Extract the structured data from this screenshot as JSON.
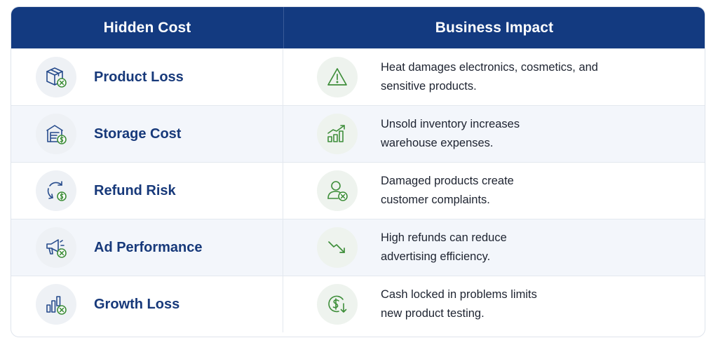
{
  "header": {
    "col1": "Hidden Cost",
    "col2": "Business Impact"
  },
  "colors": {
    "header_bg": "#133a80",
    "label_text": "#17397a",
    "icon_blue": "#264b8c",
    "icon_green": "#3e8e3a",
    "alt_row_bg": "#f3f6fb"
  },
  "rows": [
    {
      "cost_icon": "box-x-icon",
      "cost": "Product Loss",
      "impact_icon": "warning-triangle-icon",
      "impact_line1": "Heat damages electronics, cosmetics, and",
      "impact_line2": "sensitive products."
    },
    {
      "cost_icon": "warehouse-dollar-icon",
      "cost": "Storage Cost",
      "impact_icon": "bar-chart-up-icon",
      "impact_line1": "Unsold inventory increases",
      "impact_line2": "warehouse expenses."
    },
    {
      "cost_icon": "refund-cycle-dollar-icon",
      "cost": "Refund Risk",
      "impact_icon": "user-x-icon",
      "impact_line1": "Damaged products create",
      "impact_line2": "customer complaints."
    },
    {
      "cost_icon": "megaphone-x-icon",
      "cost": "Ad Performance",
      "impact_icon": "trend-down-icon",
      "impact_line1": "High refunds can reduce",
      "impact_line2": "advertising efficiency."
    },
    {
      "cost_icon": "chart-x-icon",
      "cost": "Growth Loss",
      "impact_icon": "dollar-down-icon",
      "impact_line1": "Cash locked in problems limits",
      "impact_line2": "new product testing."
    }
  ]
}
